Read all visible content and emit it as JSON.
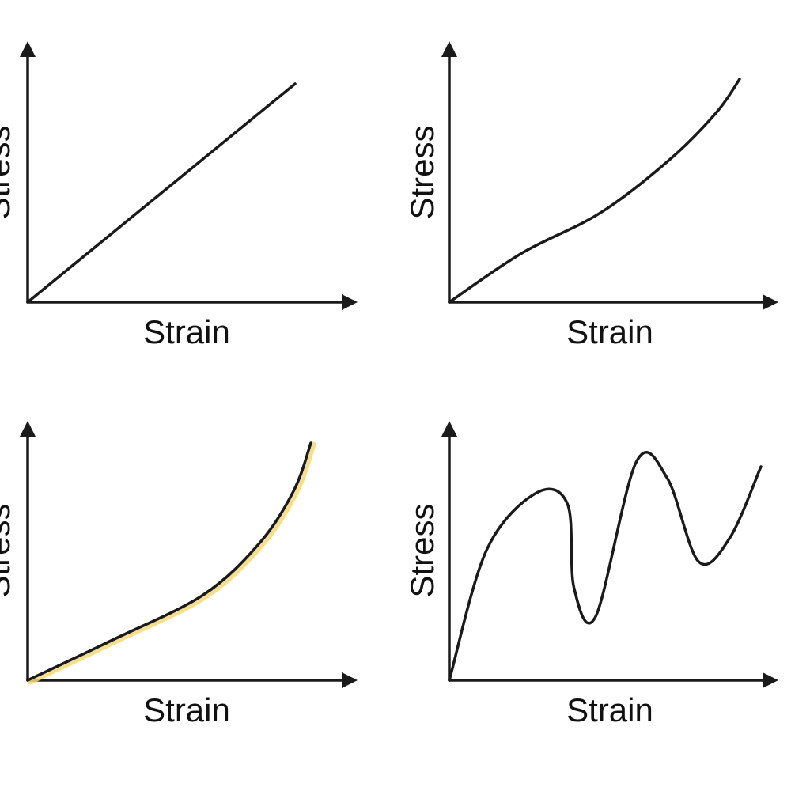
{
  "accent_color": "#f5d878",
  "chart_data": [
    {
      "type": "line",
      "xlabel": "Strain",
      "ylabel": "Stress",
      "highlight": false,
      "series": [
        {
          "x": [
            0,
            1
          ],
          "y": [
            0,
            1
          ]
        }
      ]
    },
    {
      "type": "line",
      "xlabel": "Strain",
      "ylabel": "Stress",
      "highlight": false,
      "series": [
        {
          "x": [
            0,
            0.25,
            0.52,
            0.76,
            0.92,
            1
          ],
          "y": [
            0,
            0.22,
            0.4,
            0.64,
            0.85,
            1
          ]
        }
      ]
    },
    {
      "type": "line",
      "xlabel": "Strain",
      "ylabel": "Stress",
      "highlight": true,
      "series": [
        {
          "x": [
            0,
            0.3,
            0.62,
            0.82,
            0.94,
            1
          ],
          "y": [
            0,
            0.17,
            0.36,
            0.58,
            0.8,
            1
          ]
        }
      ]
    },
    {
      "type": "line",
      "xlabel": "Strain",
      "ylabel": "Stress",
      "highlight": false,
      "series": [
        {
          "x": [
            0,
            0.12,
            0.28,
            0.38,
            0.4,
            0.47,
            0.6,
            0.7,
            0.8,
            0.9,
            1
          ],
          "y": [
            0,
            0.55,
            0.79,
            0.74,
            0.39,
            0.27,
            0.92,
            0.85,
            0.5,
            0.6,
            0.9
          ]
        }
      ]
    }
  ]
}
